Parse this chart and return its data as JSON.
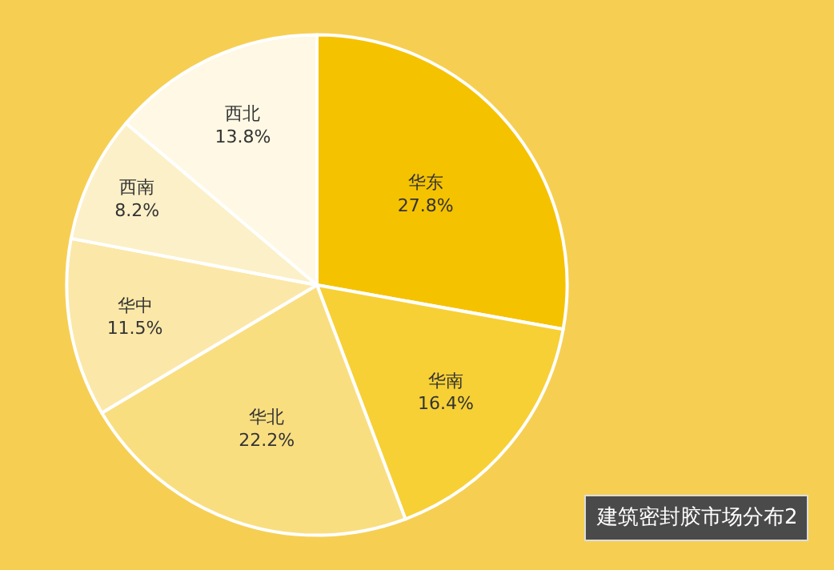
{
  "chart_data": {
    "type": "pie",
    "title": "建筑密封胶市场分布2",
    "categories": [
      "华东",
      "华南",
      "华北",
      "华中",
      "西南",
      "西北"
    ],
    "values": [
      27.8,
      16.4,
      22.2,
      11.5,
      8.2,
      13.8
    ],
    "value_labels": [
      "27.8%",
      "16.4%",
      "22.2%",
      "11.5%",
      "8.2%",
      "13.8%"
    ],
    "colors": [
      "#f5c200",
      "#f7d035",
      "#f9de80",
      "#fbe8a8",
      "#fcf0c8",
      "#fef8e4"
    ],
    "legend": false
  }
}
